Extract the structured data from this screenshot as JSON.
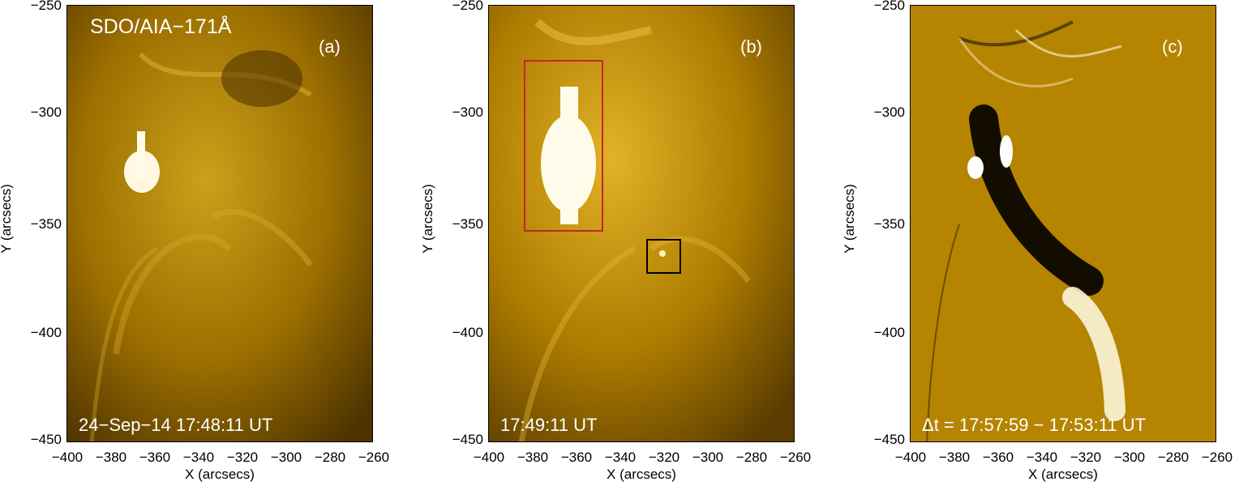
{
  "instrument_label": "SDO/AIA−171Å",
  "panels": [
    {
      "letter": "(a)",
      "timestamp": "24−Sep−14 17:48:11 UT",
      "xlabel": "X (arcsecs)",
      "ylabel": "Y (arcsecs)",
      "xticks": [
        "−400",
        "−380",
        "−360",
        "−340",
        "−320",
        "−300",
        "−280",
        "−260"
      ],
      "yticks": [
        "−250",
        "−300",
        "−350",
        "−400",
        "−450"
      ]
    },
    {
      "letter": "(b)",
      "timestamp": "17:49:11 UT",
      "xlabel": "X (arcsecs)",
      "ylabel": "Y (arcsecs)",
      "xticks": [
        "−400",
        "−380",
        "−360",
        "−340",
        "−320",
        "−300",
        "−280",
        "−260"
      ],
      "yticks": [
        "−250",
        "−300",
        "−350",
        "−400",
        "−450"
      ]
    },
    {
      "letter": "(c)",
      "timestamp": "Δt = 17:57:59 − 17:53:11 UT",
      "xlabel": "X (arcsecs)",
      "ylabel": "Y (arcsecs)",
      "xticks": [
        "−400",
        "−380",
        "−360",
        "−340",
        "−320",
        "−300",
        "−280",
        "−260"
      ],
      "yticks": [
        "−250",
        "−300",
        "−350",
        "−400",
        "−450"
      ]
    }
  ],
  "colors": {
    "sun_dark": "#3a2600",
    "sun_mid": "#b07d00",
    "sun_bright": "#f2c23a",
    "box_red": "#c0282c",
    "box_black": "#000000"
  }
}
